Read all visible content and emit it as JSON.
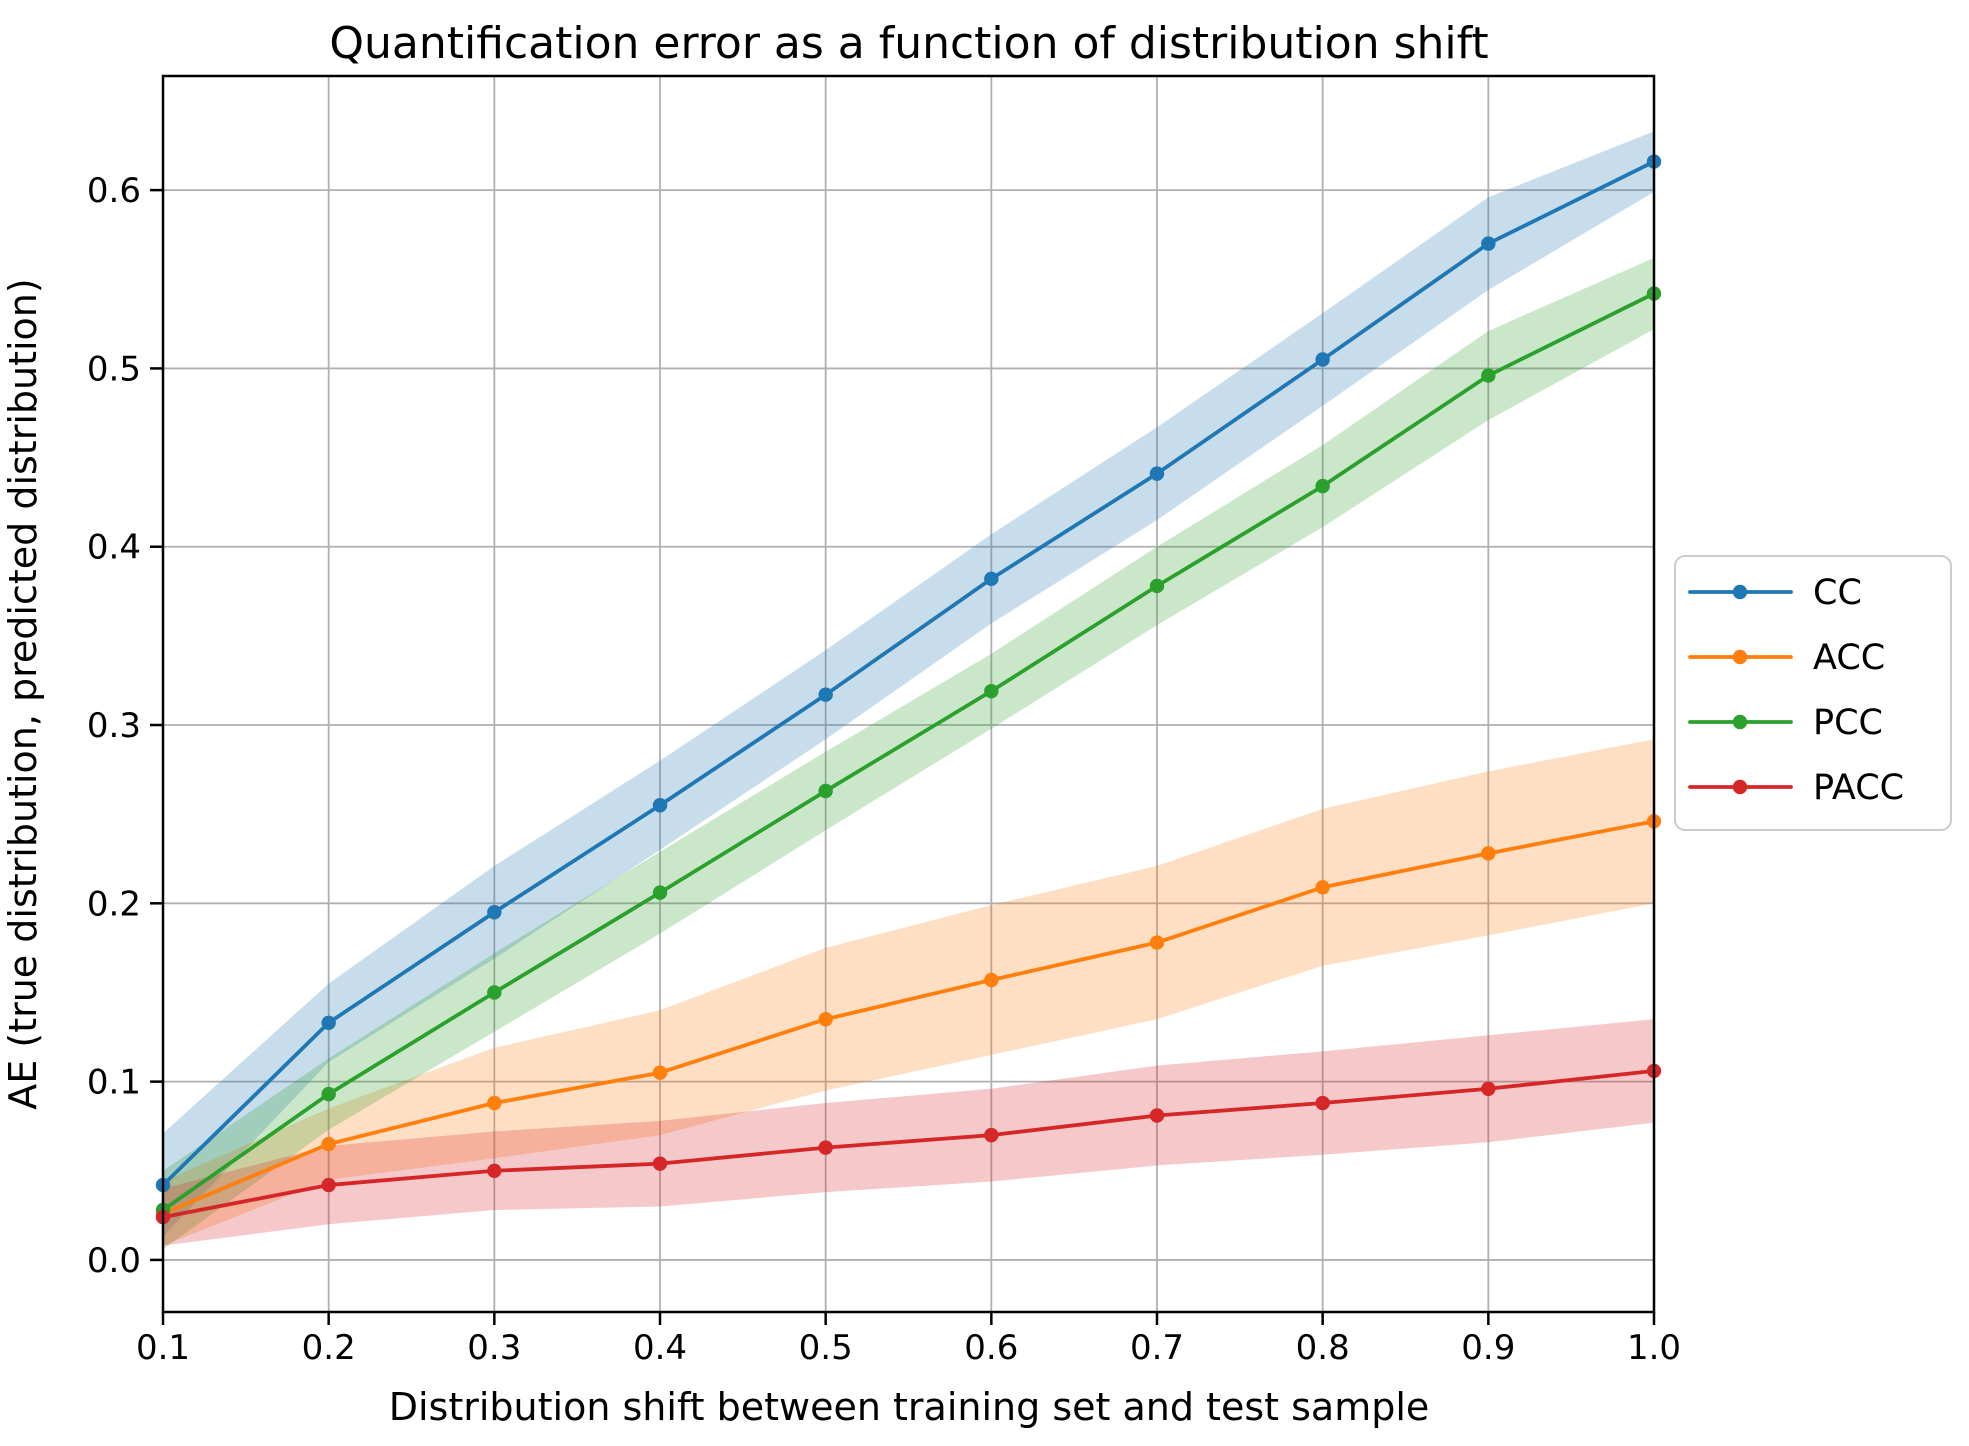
{
  "chart_data": {
    "type": "line",
    "title": "Quantification error as a function of distribution shift",
    "xlabel": "Distribution shift between training set and test sample",
    "ylabel": "AE (true distribution, predicted distribution)",
    "grid": true,
    "legend_position": "right-outside",
    "xlim": [
      0.1,
      1.0
    ],
    "ylim": [
      -0.0292,
      0.664
    ],
    "xtick_values": [
      0.1,
      0.2,
      0.3,
      0.4,
      0.5,
      0.6,
      0.7,
      0.8,
      0.9,
      1.0
    ],
    "xtick_labels": [
      "0.1",
      "0.2",
      "0.3",
      "0.4",
      "0.5",
      "0.6",
      "0.7",
      "0.8",
      "0.9",
      "1.0"
    ],
    "ytick_values": [
      0.0,
      0.1,
      0.2,
      0.3,
      0.4,
      0.5,
      0.6
    ],
    "ytick_labels": [
      "0.0",
      "0.1",
      "0.2",
      "0.3",
      "0.4",
      "0.5",
      "0.6"
    ],
    "x": [
      0.1,
      0.2,
      0.3,
      0.4,
      0.5,
      0.6,
      0.7,
      0.8,
      0.9,
      1.0
    ],
    "series": [
      {
        "name": "CC",
        "color": "#1f77b4",
        "values": [
          0.042,
          0.133,
          0.195,
          0.255,
          0.317,
          0.382,
          0.441,
          0.505,
          0.57,
          0.616
        ],
        "band_upper": [
          0.071,
          0.155,
          0.221,
          0.28,
          0.342,
          0.407,
          0.467,
          0.531,
          0.596,
          0.633
        ],
        "band_lower": [
          0.013,
          0.111,
          0.169,
          0.23,
          0.292,
          0.357,
          0.415,
          0.479,
          0.544,
          0.599
        ]
      },
      {
        "name": "ACC",
        "color": "#ff7f0e",
        "values": [
          0.026,
          0.065,
          0.088,
          0.105,
          0.135,
          0.157,
          0.178,
          0.209,
          0.228,
          0.246
        ],
        "band_upper": [
          0.044,
          0.085,
          0.119,
          0.14,
          0.175,
          0.199,
          0.221,
          0.253,
          0.274,
          0.292
        ],
        "band_lower": [
          0.008,
          0.045,
          0.057,
          0.07,
          0.095,
          0.115,
          0.135,
          0.165,
          0.182,
          0.2
        ]
      },
      {
        "name": "PCC",
        "color": "#2ca02c",
        "values": [
          0.028,
          0.093,
          0.15,
          0.206,
          0.263,
          0.319,
          0.378,
          0.434,
          0.496,
          0.542
        ],
        "band_upper": [
          0.05,
          0.113,
          0.172,
          0.229,
          0.285,
          0.34,
          0.4,
          0.457,
          0.521,
          0.562
        ],
        "band_lower": [
          0.006,
          0.073,
          0.128,
          0.183,
          0.241,
          0.298,
          0.356,
          0.411,
          0.471,
          0.522
        ]
      },
      {
        "name": "PACC",
        "color": "#d62728",
        "values": [
          0.024,
          0.042,
          0.05,
          0.054,
          0.063,
          0.07,
          0.081,
          0.088,
          0.096,
          0.106
        ],
        "band_upper": [
          0.04,
          0.064,
          0.072,
          0.078,
          0.088,
          0.096,
          0.109,
          0.117,
          0.126,
          0.135
        ],
        "band_lower": [
          0.008,
          0.02,
          0.028,
          0.03,
          0.038,
          0.044,
          0.053,
          0.059,
          0.066,
          0.077
        ]
      }
    ]
  }
}
